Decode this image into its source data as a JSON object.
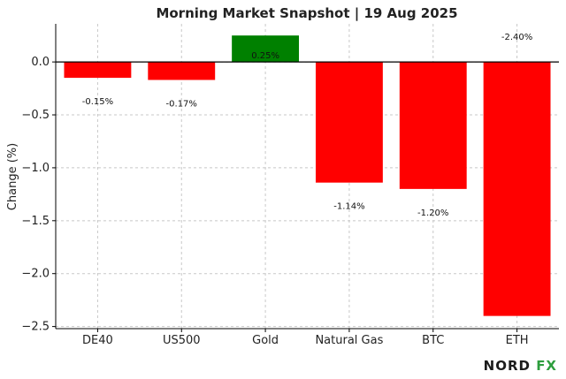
{
  "chart_data": {
    "type": "bar",
    "title": "Morning Market Snapshot | 19 Aug 2025",
    "ylabel": "Change (%)",
    "xlabel": "",
    "categories": [
      "DE40",
      "US500",
      "Gold",
      "Natural Gas",
      "BTC",
      "ETH"
    ],
    "values": [
      -0.15,
      -0.17,
      0.25,
      -1.14,
      -1.2,
      -2.4
    ],
    "data_labels": [
      "-0.15%",
      "-0.17%",
      "0.25%",
      "-1.14%",
      "-1.20%",
      "-2.40%"
    ],
    "colors": [
      "#ff0000",
      "#ff0000",
      "#008000",
      "#ff0000",
      "#ff0000",
      "#ff0000"
    ],
    "ylim": [
      -2.52,
      0.36
    ],
    "yticks": [
      0.0,
      -0.5,
      -1.0,
      -1.5,
      -2.0,
      -2.5
    ],
    "ytick_labels": [
      "0.0",
      "−0.5",
      "−1.0",
      "−1.5",
      "−2.0",
      "−2.5"
    ],
    "grid": true,
    "zero_line": true
  },
  "brand": {
    "main": "NORD ",
    "accent": "FX",
    "accent_color": "#2e9e3e"
  }
}
